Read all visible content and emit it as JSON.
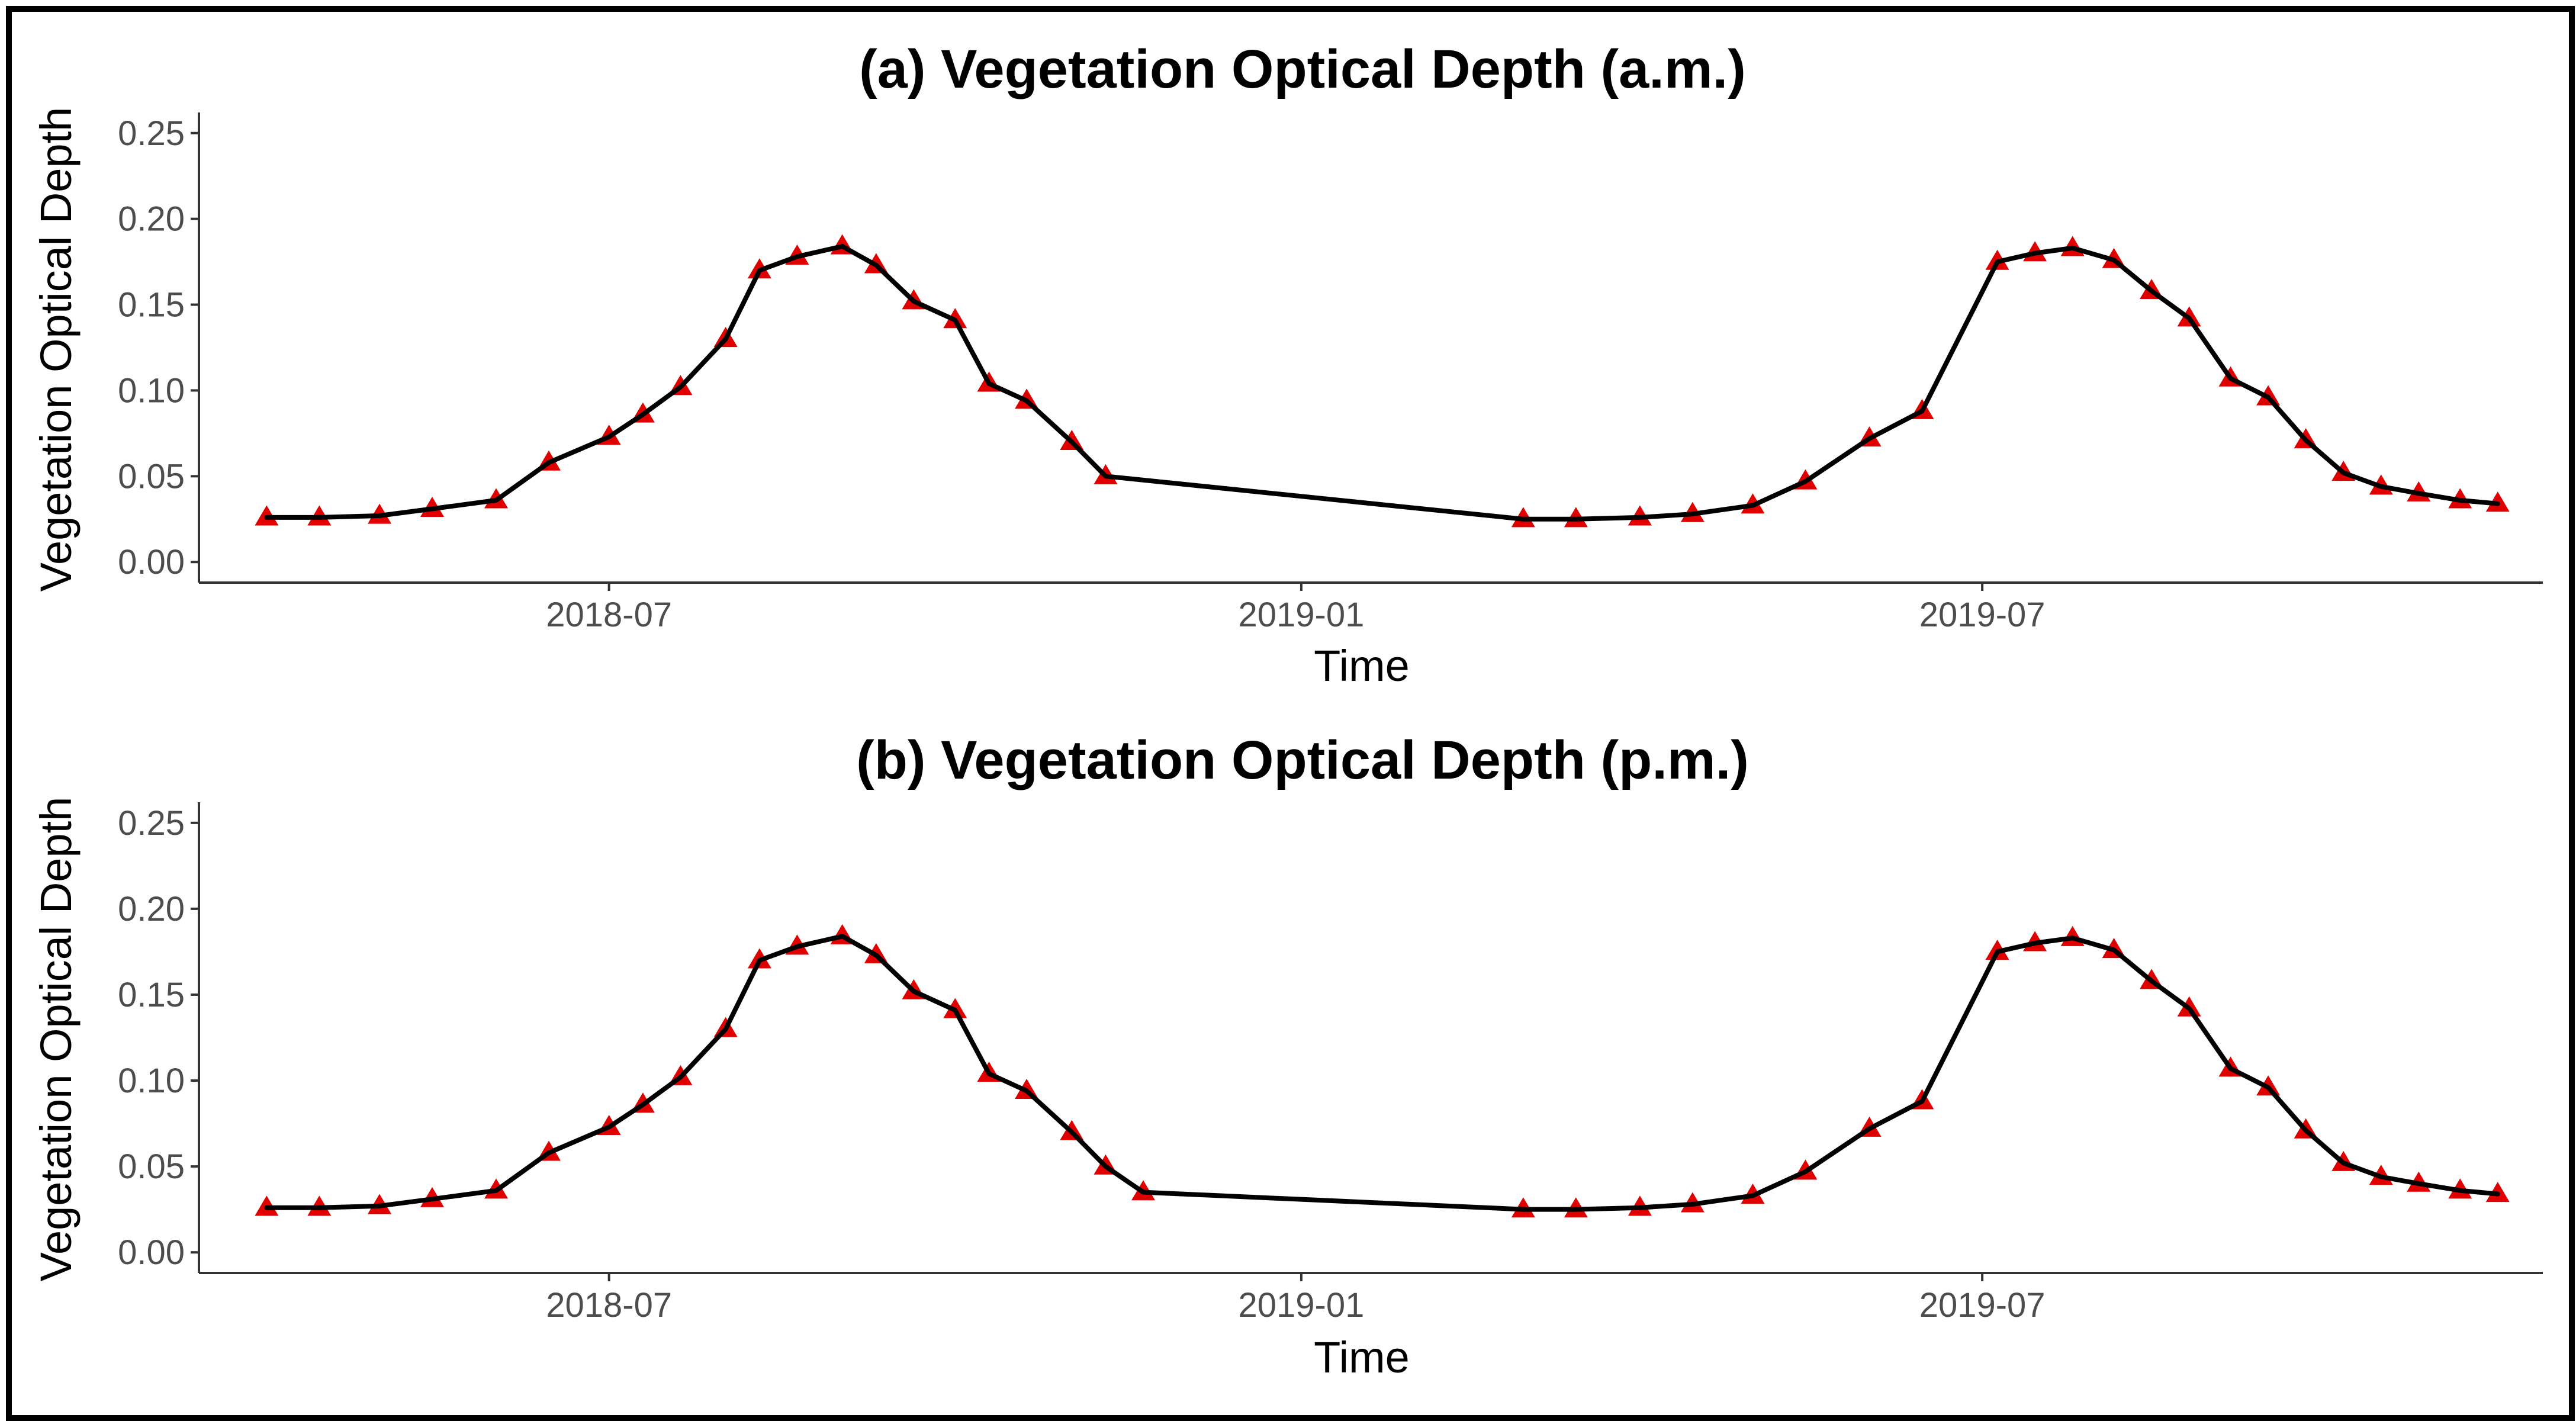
{
  "colors": {
    "points": "#e00000",
    "line": "#000000",
    "axis": "#333333",
    "tick_text": "#4d4d4d",
    "frame": "#000000"
  },
  "chart_data": [
    {
      "type": "line",
      "title": "(a)  Vegetation Optical Depth (a.m.)",
      "xlabel": "Time",
      "ylabel": "Vegetation Optical Depth",
      "xlim": [
        "2018-03-14",
        "2019-11-27"
      ],
      "ylim": [
        -0.012,
        0.262
      ],
      "x_ticks": [
        "2018-07-01",
        "2019-01-01",
        "2019-07-01"
      ],
      "x_tick_labels": [
        "2018-07",
        "2019-01",
        "2019-07"
      ],
      "y_ticks": [
        0.0,
        0.05,
        0.1,
        0.15,
        0.2,
        0.25
      ],
      "y_tick_labels": [
        "0.00",
        "0.05",
        "0.10",
        "0.15",
        "0.20",
        "0.25"
      ],
      "grid": false,
      "legend": "none",
      "series": [
        {
          "marker": "triangle",
          "x": [
            "2018-04-01",
            "2018-04-15",
            "2018-05-01",
            "2018-05-15",
            "2018-06-01",
            "2018-06-15",
            "2018-07-01",
            "2018-07-10",
            "2018-07-20",
            "2018-08-01",
            "2018-08-10",
            "2018-08-20",
            "2018-09-01",
            "2018-09-10",
            "2018-09-20",
            "2018-10-01",
            "2018-10-10",
            "2018-10-20",
            "2018-11-01",
            "2018-11-10",
            "2019-03-01",
            "2019-03-15",
            "2019-04-01",
            "2019-04-15",
            "2019-05-01",
            "2019-05-15",
            "2019-06-01",
            "2019-06-15",
            "2019-07-05",
            "2019-07-15",
            "2019-07-25",
            "2019-08-05",
            "2019-08-15",
            "2019-08-25",
            "2019-09-05",
            "2019-09-15",
            "2019-09-25",
            "2019-10-05",
            "2019-10-15",
            "2019-10-25",
            "2019-11-05",
            "2019-11-15"
          ],
          "y": [
            0.026,
            0.026,
            0.027,
            0.031,
            0.036,
            0.058,
            0.073,
            0.086,
            0.102,
            0.13,
            0.17,
            0.178,
            0.184,
            0.173,
            0.152,
            0.141,
            0.104,
            0.094,
            0.07,
            0.05,
            0.025,
            0.025,
            0.026,
            0.028,
            0.033,
            0.047,
            0.072,
            0.088,
            0.175,
            0.18,
            0.183,
            0.176,
            0.158,
            0.142,
            0.107,
            0.096,
            0.071,
            0.052,
            0.044,
            0.04,
            0.036,
            0.034
          ]
        }
      ]
    },
    {
      "type": "line",
      "title": "(b)  Vegetation Optical Depth (p.m.)",
      "xlabel": "Time",
      "ylabel": "Vegetation Optical Depth",
      "xlim": [
        "2018-03-14",
        "2019-11-27"
      ],
      "ylim": [
        -0.012,
        0.262
      ],
      "x_ticks": [
        "2018-07-01",
        "2019-01-01",
        "2019-07-01"
      ],
      "x_tick_labels": [
        "2018-07",
        "2019-01",
        "2019-07"
      ],
      "y_ticks": [
        0.0,
        0.05,
        0.1,
        0.15,
        0.2,
        0.25
      ],
      "y_tick_labels": [
        "0.00",
        "0.05",
        "0.10",
        "0.15",
        "0.20",
        "0.25"
      ],
      "grid": false,
      "legend": "none",
      "series": [
        {
          "marker": "triangle",
          "x": [
            "2018-04-01",
            "2018-04-15",
            "2018-05-01",
            "2018-05-15",
            "2018-06-01",
            "2018-06-15",
            "2018-07-01",
            "2018-07-10",
            "2018-07-20",
            "2018-08-01",
            "2018-08-10",
            "2018-08-20",
            "2018-09-01",
            "2018-09-10",
            "2018-09-20",
            "2018-10-01",
            "2018-10-10",
            "2018-10-20",
            "2018-11-01",
            "2018-11-10",
            "2018-11-20",
            "2019-03-01",
            "2019-03-15",
            "2019-04-01",
            "2019-04-15",
            "2019-05-01",
            "2019-05-15",
            "2019-06-01",
            "2019-06-15",
            "2019-07-05",
            "2019-07-15",
            "2019-07-25",
            "2019-08-05",
            "2019-08-15",
            "2019-08-25",
            "2019-09-05",
            "2019-09-15",
            "2019-09-25",
            "2019-10-05",
            "2019-10-15",
            "2019-10-25",
            "2019-11-05",
            "2019-11-15"
          ],
          "y": [
            0.026,
            0.026,
            0.027,
            0.031,
            0.036,
            0.058,
            0.073,
            0.086,
            0.102,
            0.13,
            0.17,
            0.178,
            0.184,
            0.173,
            0.152,
            0.141,
            0.104,
            0.094,
            0.07,
            0.05,
            0.035,
            0.025,
            0.025,
            0.026,
            0.028,
            0.033,
            0.047,
            0.072,
            0.088,
            0.175,
            0.18,
            0.183,
            0.176,
            0.158,
            0.142,
            0.107,
            0.096,
            0.071,
            0.052,
            0.044,
            0.04,
            0.036,
            0.034
          ]
        }
      ]
    }
  ]
}
